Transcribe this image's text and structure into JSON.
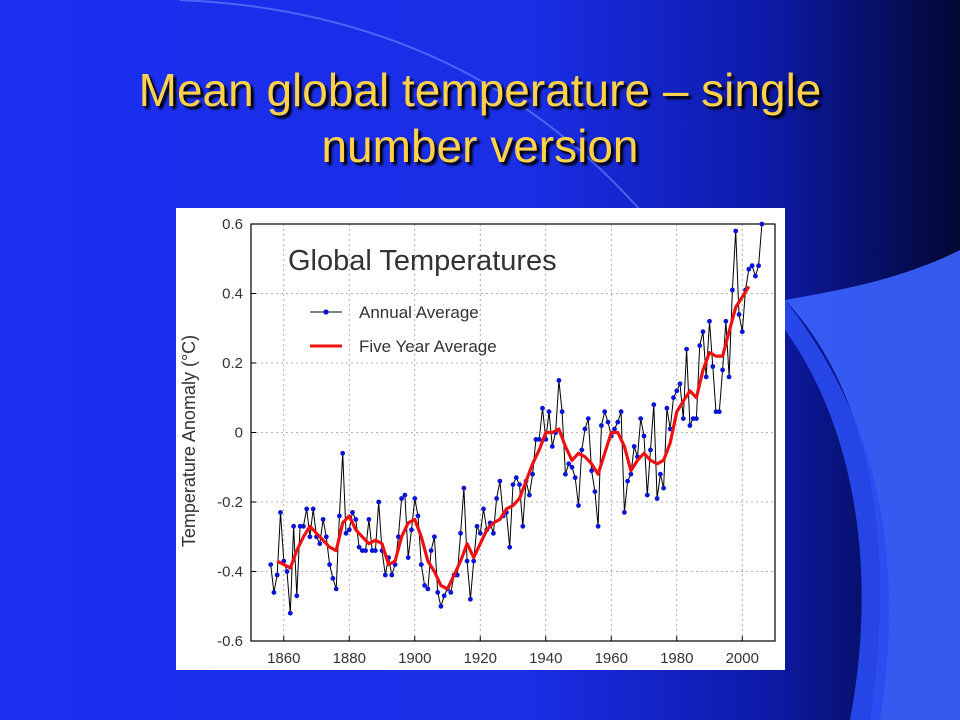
{
  "slide": {
    "title_line1": "Mean global temperature – single",
    "title_line2": "number version",
    "colors": {
      "title": "#ffd24a",
      "background": "#1a2ff0",
      "annual_series": "#0a14d6",
      "five_year_series": "#ee1111"
    }
  },
  "chart_data": {
    "type": "line",
    "title": "Global Temperatures",
    "xlabel": "",
    "ylabel": "Temperature Anomaly (°C)",
    "xlim": [
      1850,
      2010
    ],
    "ylim": [
      -0.6,
      0.6
    ],
    "xticks": [
      1860,
      1880,
      1900,
      1920,
      1940,
      1960,
      1980,
      2000
    ],
    "yticks": [
      -0.6,
      -0.4,
      -0.2,
      0,
      0.2,
      0.4,
      0.6
    ],
    "ytick_labels": [
      "-0.6",
      "-0.4",
      "-0.2",
      "0",
      "0.2",
      "0.4",
      "0.6"
    ],
    "grid": true,
    "legend_position": "top-left",
    "series": [
      {
        "name": "Annual Average",
        "style": "line-with-markers",
        "x": [
          1856,
          1857,
          1858,
          1859,
          1860,
          1861,
          1862,
          1863,
          1864,
          1865,
          1866,
          1867,
          1868,
          1869,
          1870,
          1871,
          1872,
          1873,
          1874,
          1875,
          1876,
          1877,
          1878,
          1879,
          1880,
          1881,
          1882,
          1883,
          1884,
          1885,
          1886,
          1887,
          1888,
          1889,
          1890,
          1891,
          1892,
          1893,
          1894,
          1895,
          1896,
          1897,
          1898,
          1899,
          1900,
          1901,
          1902,
          1903,
          1904,
          1905,
          1906,
          1907,
          1908,
          1909,
          1910,
          1911,
          1912,
          1913,
          1914,
          1915,
          1916,
          1917,
          1918,
          1919,
          1920,
          1921,
          1922,
          1923,
          1924,
          1925,
          1926,
          1927,
          1928,
          1929,
          1930,
          1931,
          1932,
          1933,
          1934,
          1935,
          1936,
          1937,
          1938,
          1939,
          1940,
          1941,
          1942,
          1943,
          1944,
          1945,
          1946,
          1947,
          1948,
          1949,
          1950,
          1951,
          1952,
          1953,
          1954,
          1955,
          1956,
          1957,
          1958,
          1959,
          1960,
          1961,
          1962,
          1963,
          1964,
          1965,
          1966,
          1967,
          1968,
          1969,
          1970,
          1971,
          1972,
          1973,
          1974,
          1975,
          1976,
          1977,
          1978,
          1979,
          1980,
          1981,
          1982,
          1983,
          1984,
          1985,
          1986,
          1987,
          1988,
          1989,
          1990,
          1991,
          1992,
          1993,
          1994,
          1995,
          1996,
          1997,
          1998,
          1999,
          2000,
          2001,
          2002,
          2003,
          2004,
          2005,
          2006
        ],
        "y": [
          -0.38,
          -0.46,
          -0.41,
          -0.23,
          -0.37,
          -0.4,
          -0.52,
          -0.27,
          -0.47,
          -0.27,
          -0.27,
          -0.22,
          -0.3,
          -0.22,
          -0.3,
          -0.32,
          -0.25,
          -0.3,
          -0.38,
          -0.42,
          -0.45,
          -0.24,
          -0.06,
          -0.29,
          -0.28,
          -0.23,
          -0.25,
          -0.33,
          -0.34,
          -0.34,
          -0.25,
          -0.34,
          -0.34,
          -0.2,
          -0.34,
          -0.41,
          -0.36,
          -0.41,
          -0.38,
          -0.3,
          -0.19,
          -0.18,
          -0.36,
          -0.28,
          -0.19,
          -0.24,
          -0.38,
          -0.44,
          -0.45,
          -0.34,
          -0.3,
          -0.46,
          -0.5,
          -0.47,
          -0.45,
          -0.46,
          -0.41,
          -0.41,
          -0.29,
          -0.16,
          -0.37,
          -0.48,
          -0.37,
          -0.27,
          -0.29,
          -0.22,
          -0.28,
          -0.26,
          -0.29,
          -0.19,
          -0.14,
          -0.24,
          -0.23,
          -0.33,
          -0.15,
          -0.13,
          -0.15,
          -0.27,
          -0.14,
          -0.18,
          -0.12,
          -0.02,
          -0.02,
          0.07,
          -0.02,
          0.06,
          -0.04,
          0.0,
          0.15,
          0.06,
          -0.12,
          -0.09,
          -0.1,
          -0.13,
          -0.21,
          -0.05,
          0.01,
          0.04,
          -0.11,
          -0.17,
          -0.27,
          0.02,
          0.06,
          0.03,
          -0.01,
          0.01,
          0.03,
          0.06,
          -0.23,
          -0.14,
          -0.12,
          -0.04,
          -0.07,
          0.04,
          -0.01,
          -0.18,
          -0.05,
          0.08,
          -0.19,
          -0.12,
          -0.16,
          0.07,
          0.01,
          0.1,
          0.12,
          0.14,
          0.04,
          0.24,
          0.02,
          0.04,
          0.04,
          0.25,
          0.29,
          0.16,
          0.32,
          0.19,
          0.06,
          0.06,
          0.18,
          0.32,
          0.16,
          0.41,
          0.58,
          0.34,
          0.29,
          0.41,
          0.47,
          0.48,
          0.45,
          0.48,
          0.6
        ]
      },
      {
        "name": "Five Year Average",
        "style": "thick-line",
        "x": [
          1858,
          1860,
          1862,
          1864,
          1866,
          1868,
          1870,
          1872,
          1874,
          1876,
          1878,
          1880,
          1882,
          1884,
          1886,
          1888,
          1890,
          1892,
          1894,
          1896,
          1898,
          1900,
          1902,
          1904,
          1906,
          1908,
          1910,
          1912,
          1914,
          1916,
          1918,
          1920,
          1922,
          1924,
          1926,
          1928,
          1930,
          1932,
          1934,
          1936,
          1938,
          1940,
          1942,
          1944,
          1946,
          1948,
          1950,
          1952,
          1954,
          1956,
          1958,
          1960,
          1962,
          1964,
          1966,
          1968,
          1970,
          1972,
          1974,
          1976,
          1978,
          1980,
          1982,
          1984,
          1986,
          1988,
          1990,
          1992,
          1994,
          1996,
          1998,
          2000,
          2002
        ],
        "y": [
          -0.37,
          -0.38,
          -0.39,
          -0.34,
          -0.3,
          -0.27,
          -0.29,
          -0.31,
          -0.33,
          -0.34,
          -0.26,
          -0.24,
          -0.28,
          -0.3,
          -0.32,
          -0.31,
          -0.32,
          -0.38,
          -0.37,
          -0.3,
          -0.26,
          -0.25,
          -0.3,
          -0.37,
          -0.4,
          -0.44,
          -0.45,
          -0.41,
          -0.37,
          -0.32,
          -0.36,
          -0.32,
          -0.28,
          -0.26,
          -0.25,
          -0.22,
          -0.21,
          -0.19,
          -0.14,
          -0.09,
          -0.05,
          0.0,
          0.0,
          0.01,
          -0.04,
          -0.08,
          -0.06,
          -0.07,
          -0.09,
          -0.12,
          -0.06,
          0.0,
          0.0,
          -0.04,
          -0.11,
          -0.08,
          -0.06,
          -0.08,
          -0.09,
          -0.08,
          -0.03,
          0.06,
          0.09,
          0.12,
          0.1,
          0.18,
          0.23,
          0.22,
          0.22,
          0.29,
          0.36,
          0.39,
          0.42
        ]
      }
    ]
  }
}
